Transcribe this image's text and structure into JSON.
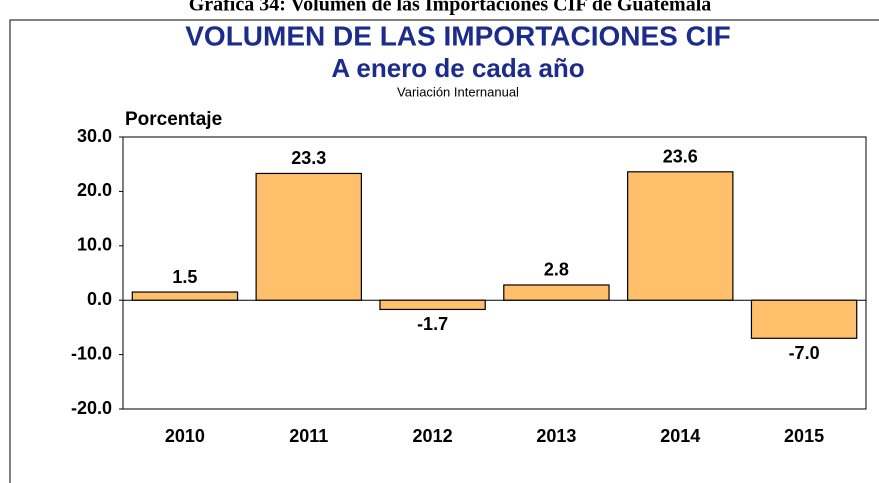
{
  "chart_data": {
    "type": "bar",
    "heading": "Gráfica 34: Volumen de las Importaciones CIF de Guatemala",
    "title": "VOLUMEN DE LAS IMPORTACIONES CIF",
    "subtitle": "A enero de cada año",
    "note": "Variación Internanual",
    "y_label": "Porcentaje",
    "categories": [
      "2010",
      "2011",
      "2012",
      "2013",
      "2014",
      "2015"
    ],
    "values": [
      1.5,
      23.3,
      -1.7,
      2.8,
      23.6,
      -7.0
    ],
    "value_labels": [
      "1.5",
      "23.3",
      "-1.7",
      "2.8",
      "23.6",
      "-7.0"
    ],
    "color": "#ffbf6b",
    "ylim": [
      -20,
      30
    ],
    "yticks": [
      {
        "value": -20,
        "label": "-20.0"
      },
      {
        "value": -10,
        "label": "-10.0"
      },
      {
        "value": 0,
        "label": "0.0"
      },
      {
        "value": 10,
        "label": "10.0"
      },
      {
        "value": 20,
        "label": "20.0"
      },
      {
        "value": 30,
        "label": "30.0"
      }
    ]
  }
}
